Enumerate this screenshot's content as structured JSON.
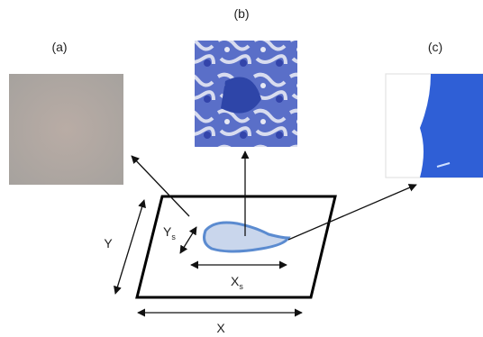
{
  "panels": [
    {
      "label": "(a)"
    },
    {
      "label": "(b)"
    },
    {
      "label": "(c)"
    }
  ],
  "dimensions": {
    "x": "X",
    "y": "Y",
    "xs": {
      "main": "X",
      "sub": "s"
    },
    "ys": {
      "main": "Y",
      "sub": "s"
    }
  }
}
